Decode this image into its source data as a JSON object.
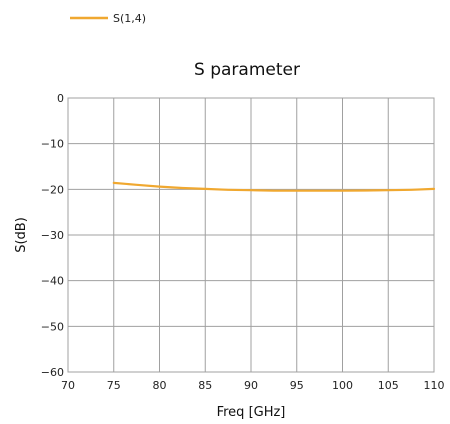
{
  "chart_data": {
    "type": "line",
    "title": "S parameter",
    "xlabel": "Freq [GHz]",
    "ylabel": "S(dB)",
    "xlim": [
      70,
      110
    ],
    "ylim": [
      -60,
      0
    ],
    "xticks": [
      70,
      75,
      80,
      85,
      90,
      95,
      100,
      105,
      110
    ],
    "xtick_labels": [
      "70",
      "75",
      "80",
      "85",
      "90",
      "95",
      "100",
      "105",
      "110"
    ],
    "yticks": [
      0,
      -10,
      -20,
      -30,
      -40,
      -50,
      -60
    ],
    "ytick_labels": [
      "0",
      "−10",
      "−20",
      "−30",
      "−40",
      "−50",
      "−60"
    ],
    "grid": true,
    "legend_position": "top-left",
    "series": [
      {
        "name": "S(1,4)",
        "color": "#f0a830",
        "x": [
          75,
          77.5,
          80,
          82.5,
          85,
          87.5,
          90,
          92.5,
          95,
          97.5,
          100,
          102.5,
          105,
          107.5,
          110
        ],
        "y": [
          -18.6,
          -19.0,
          -19.4,
          -19.7,
          -19.9,
          -20.1,
          -20.2,
          -20.3,
          -20.3,
          -20.3,
          -20.3,
          -20.25,
          -20.2,
          -20.1,
          -19.9
        ]
      }
    ]
  }
}
